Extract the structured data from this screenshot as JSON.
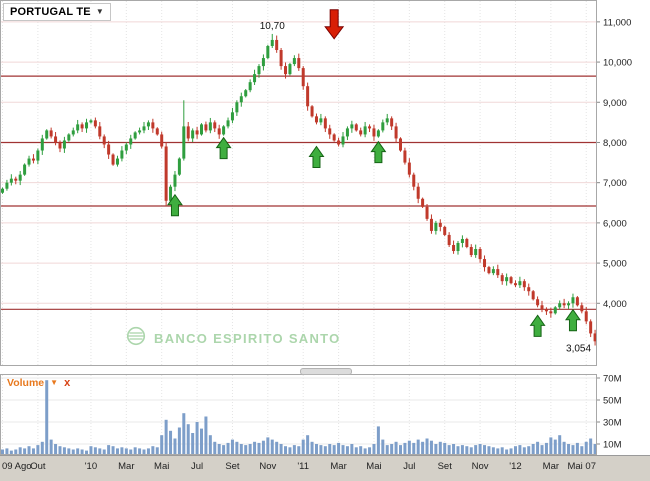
{
  "header": {
    "instrument": "PORTUGAL TE",
    "dropdown_icon": "▼"
  },
  "volume_panel": {
    "label": "Volume",
    "dropdown_icon": "▼",
    "close_icon": "x"
  },
  "watermark": {
    "text": "BANCO ESPIRITO SANTO"
  },
  "colors": {
    "up": "#2f9e3f",
    "down": "#c0392b",
    "grid_h": "#f0d8d8",
    "grid_v": "#e4e4e4",
    "level_line": "#a03333",
    "volume_bar": "#7d9ec9",
    "accent_orange": "#e8791e",
    "axis_text": "#222222",
    "bottom_strip": "#d4d0c8",
    "watermark_green": "#a8d4a8",
    "buy_arrow": "#3fae3f",
    "sell_arrow": "#d81e05"
  },
  "chart_data": {
    "type": "candlestick+volume",
    "title": "PORTUGAL TE",
    "y_axis": {
      "min": 2.44,
      "max": 11.544,
      "ticks": [
        {
          "v": 11,
          "label": "11,000"
        },
        {
          "v": 10,
          "label": "10,000"
        },
        {
          "v": 9,
          "label": "9,000"
        },
        {
          "v": 8,
          "label": "8,000"
        },
        {
          "v": 7,
          "label": "7,000"
        },
        {
          "v": 6,
          "label": "6,000"
        },
        {
          "v": 5,
          "label": "5,000"
        },
        {
          "v": 4,
          "label": "4,000"
        }
      ]
    },
    "volume_axis": {
      "min": 0,
      "max": 73.6,
      "ticks": [
        {
          "v": 70,
          "label": "70M"
        },
        {
          "v": 50,
          "label": "50M"
        },
        {
          "v": 30,
          "label": "30M"
        },
        {
          "v": 10,
          "label": "10M"
        }
      ]
    },
    "x_ticks": [
      {
        "i": 0,
        "label": "09 Ago"
      },
      {
        "i": 8,
        "label": "Out"
      },
      {
        "i": 20,
        "label": "'10"
      },
      {
        "i": 28,
        "label": "Mar"
      },
      {
        "i": 36,
        "label": "Mai"
      },
      {
        "i": 44,
        "label": "Jul"
      },
      {
        "i": 52,
        "label": "Set"
      },
      {
        "i": 60,
        "label": "Nov"
      },
      {
        "i": 68,
        "label": "'11"
      },
      {
        "i": 76,
        "label": "Mar"
      },
      {
        "i": 84,
        "label": "Mai"
      },
      {
        "i": 92,
        "label": "Jul"
      },
      {
        "i": 100,
        "label": "Set"
      },
      {
        "i": 108,
        "label": "Nov"
      },
      {
        "i": 116,
        "label": "'12"
      },
      {
        "i": 124,
        "label": "Mar"
      },
      {
        "i": 132,
        "label": "Mai 07"
      }
    ],
    "h_grid": [
      4,
      5,
      6,
      7,
      8,
      9,
      10,
      11
    ],
    "levels": [
      9.65,
      8.0,
      6.42,
      3.85
    ],
    "close": [
      6.85,
      7.0,
      7.1,
      7.05,
      7.2,
      7.45,
      7.6,
      7.55,
      7.8,
      8.1,
      8.3,
      8.15,
      8.0,
      7.85,
      8.05,
      8.2,
      8.3,
      8.45,
      8.35,
      8.5,
      8.55,
      8.4,
      8.15,
      7.95,
      7.7,
      7.45,
      7.6,
      7.8,
      7.95,
      8.1,
      8.25,
      8.3,
      8.4,
      8.5,
      8.35,
      8.2,
      7.9,
      6.55,
      6.9,
      7.2,
      7.6,
      8.4,
      8.1,
      8.3,
      8.2,
      8.45,
      8.3,
      8.5,
      8.35,
      8.2,
      8.4,
      8.55,
      8.75,
      9.0,
      9.15,
      9.3,
      9.5,
      9.7,
      9.9,
      10.1,
      10.4,
      10.55,
      10.3,
      9.9,
      9.7,
      9.95,
      10.1,
      9.85,
      9.4,
      8.9,
      8.65,
      8.5,
      8.6,
      8.35,
      8.2,
      8.05,
      7.95,
      8.15,
      8.35,
      8.45,
      8.3,
      8.2,
      8.4,
      8.35,
      8.15,
      8.3,
      8.5,
      8.6,
      8.4,
      8.1,
      7.8,
      7.5,
      7.2,
      6.9,
      6.6,
      6.4,
      6.1,
      5.8,
      6.0,
      5.9,
      5.7,
      5.45,
      5.3,
      5.5,
      5.6,
      5.4,
      5.2,
      5.35,
      5.1,
      4.9,
      4.75,
      4.85,
      4.7,
      4.55,
      4.65,
      4.5,
      4.45,
      4.55,
      4.4,
      4.3,
      4.1,
      3.95,
      3.85,
      3.8,
      3.75,
      3.9,
      4.0,
      3.95,
      4.0,
      4.15,
      3.95,
      3.8,
      3.55,
      3.25,
      3.054
    ],
    "volume": [
      5,
      6,
      4,
      5,
      7,
      6,
      8,
      6,
      9,
      12,
      68,
      14,
      10,
      8,
      7,
      6,
      5,
      6,
      5,
      4,
      8,
      7,
      6,
      5,
      9,
      8,
      6,
      7,
      6,
      5,
      7,
      6,
      5,
      6,
      8,
      7,
      18,
      32,
      22,
      15,
      25,
      38,
      28,
      20,
      30,
      24,
      35,
      18,
      12,
      10,
      9,
      11,
      14,
      12,
      10,
      9,
      10,
      12,
      11,
      13,
      16,
      14,
      12,
      10,
      8,
      7,
      9,
      8,
      14,
      18,
      12,
      10,
      9,
      8,
      10,
      9,
      11,
      9,
      8,
      10,
      7,
      8,
      6,
      7,
      10,
      26,
      14,
      9,
      10,
      12,
      9,
      11,
      13,
      11,
      14,
      12,
      15,
      13,
      10,
      12,
      11,
      9,
      10,
      8,
      9,
      8,
      7,
      9,
      10,
      9,
      8,
      7,
      6,
      7,
      5,
      6,
      8,
      9,
      7,
      8,
      10,
      12,
      9,
      11,
      16,
      14,
      18,
      12,
      10,
      9,
      11,
      8,
      12,
      15,
      10
    ],
    "wick_overrides": [
      {
        "i": 37,
        "low": 6.42
      },
      {
        "i": 41,
        "high": 9.05
      },
      {
        "i": 61,
        "high": 10.7
      },
      {
        "i": 134,
        "low": 2.95
      }
    ],
    "annotations": {
      "peak": {
        "i": 61,
        "value": 10.7,
        "label": "10,70"
      },
      "last": {
        "i": 134,
        "value": 3.054,
        "label": "3,054"
      },
      "up_arrows": [
        {
          "i": 39,
          "v": 6.7
        },
        {
          "i": 50,
          "v": 8.12
        },
        {
          "i": 71,
          "v": 7.9
        },
        {
          "i": 85,
          "v": 8.02
        },
        {
          "i": 121,
          "v": 3.7
        },
        {
          "i": 129,
          "v": 3.84
        }
      ],
      "down_arrow": {
        "i": 75,
        "top_v": 11.3,
        "tip_v": 10.58
      }
    }
  }
}
